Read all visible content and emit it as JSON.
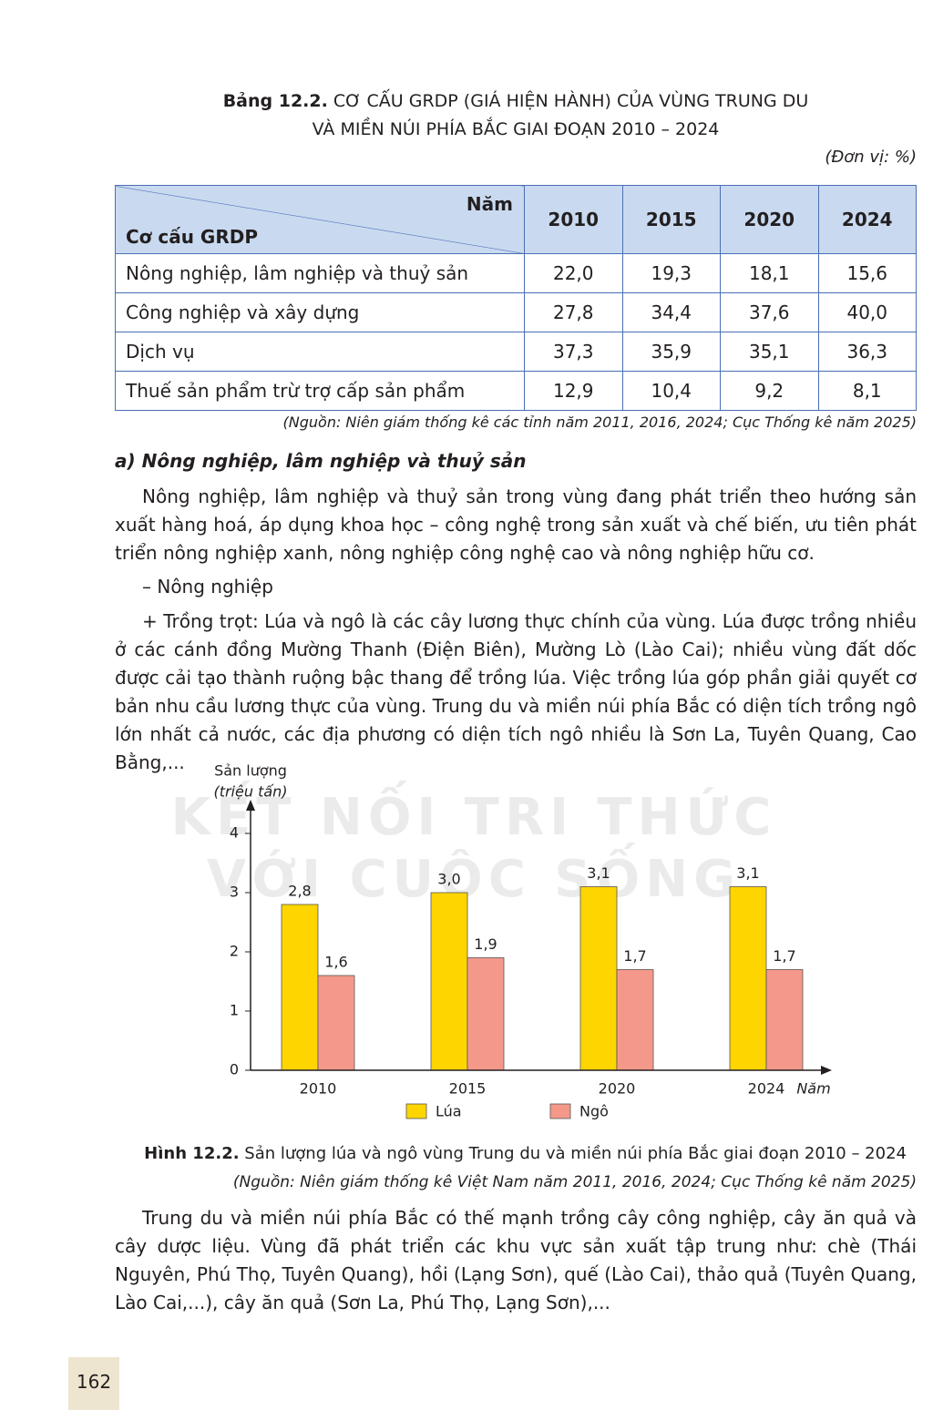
{
  "table_caption": {
    "label": "Bảng 12.2.",
    "lines": [
      "CƠ CẤU GRDP (GIÁ HIỆN HÀNH) CỦA VÙNG TRUNG DU",
      "VÀ MIỀN NÚI PHÍA BẮC GIAI ĐOẠN 2010 – 2024"
    ]
  },
  "unit": "(Đơn vị: %)",
  "table": {
    "corner_top": "Năm",
    "corner_bottom": "Cơ cấu GRDP",
    "columns": [
      "2010",
      "2015",
      "2020",
      "2024"
    ],
    "rows": [
      [
        "Nông nghiệp, lâm nghiệp và thuỷ sản",
        "22,0",
        "19,3",
        "18,1",
        "15,6"
      ],
      [
        "Công nghiệp và xây dựng",
        "27,8",
        "34,4",
        "37,6",
        "40,0"
      ],
      [
        "Dịch vụ",
        "37,3",
        "35,9",
        "35,1",
        "36,3"
      ],
      [
        "Thuế sản phẩm trừ trợ cấp sản phẩm",
        "12,9",
        "10,4",
        "9,2",
        "8,1"
      ]
    ]
  },
  "table_source": "(Nguồn: Niên giám thống kê các tỉnh năm 2011, 2016, 2024; Cục Thống kê năm 2025)",
  "section_heading": "a) Nông nghiệp, lâm nghiệp và thuỷ sản",
  "paragraphs": [
    "Nông nghiệp, lâm nghiệp và thuỷ sản trong vùng đang phát triển theo hướng sản xuất hàng hoá, áp dụng khoa học – công nghệ trong sản xuất và chế biến, ưu tiên phát triển nông nghiệp xanh, nông nghiệp công nghệ cao và nông nghiệp hữu cơ.",
    "– Nông nghiệp",
    "+ Trồng trọt: Lúa và ngô là các cây lương thực chính của vùng. Lúa được trồng nhiều ở các cánh đồng Mường Thanh (Điện Biên), Mường Lò (Lào Cai); nhiều vùng đất dốc được cải tạo thành ruộng bậc thang để trồng lúa. Việc trồng lúa góp phần giải quyết cơ bản nhu cầu lương thực của vùng. Trung du và miền núi phía Bắc có diện tích trồng ngô lớn nhất cả nước, các địa phương có diện tích ngô nhiều là Sơn La, Tuyên Quang, Cao Bằng,..."
  ],
  "chart_data": {
    "type": "bar",
    "y_label": "Sản lượng",
    "y_unit": "(triệu tấn)",
    "x_label": "Năm",
    "categories": [
      "2010",
      "2015",
      "2020",
      "2024"
    ],
    "series": [
      {
        "name": "Lúa",
        "color": "#ffd500",
        "values": [
          2.8,
          3.0,
          3.1,
          3.1
        ],
        "value_labels": [
          "2,8",
          "3,0",
          "3,1",
          "3,1"
        ]
      },
      {
        "name": "Ngô",
        "color": "#f4998a",
        "values": [
          1.6,
          1.9,
          1.7,
          1.7
        ],
        "value_labels": [
          "1,6",
          "1,9",
          "1,7",
          "1,7"
        ]
      }
    ],
    "ylim": [
      0,
      4.4
    ],
    "yticks": [
      0,
      1,
      2,
      3,
      4
    ]
  },
  "figure_caption": {
    "label": "Hình 12.2.",
    "text": "Sản lượng lúa và ngô vùng Trung du và miền núi phía Bắc giai đoạn 2010 – 2024",
    "source": "(Nguồn: Niên giám thống kê Việt Nam năm 2011, 2016, 2024; Cục Thống kê năm 2025)"
  },
  "paragraph_after": "Trung du và miền núi phía Bắc có thế mạnh trồng cây công nghiệp, cây ăn quả và cây dược liệu. Vùng đã phát triển các khu vực sản xuất tập trung như: chè (Thái Nguyên, Phú Thọ, Tuyên Quang), hồi (Lạng Sơn), quế (Lào Cai), thảo quả (Tuyên Quang, Lào Cai,...), cây ăn quả (Sơn La, Phú Thọ, Lạng Sơn),...",
  "watermark": [
    "KẾT NỐI TRI THỨC",
    "VỚI CUỘC SỐNG"
  ],
  "page_number": "162"
}
